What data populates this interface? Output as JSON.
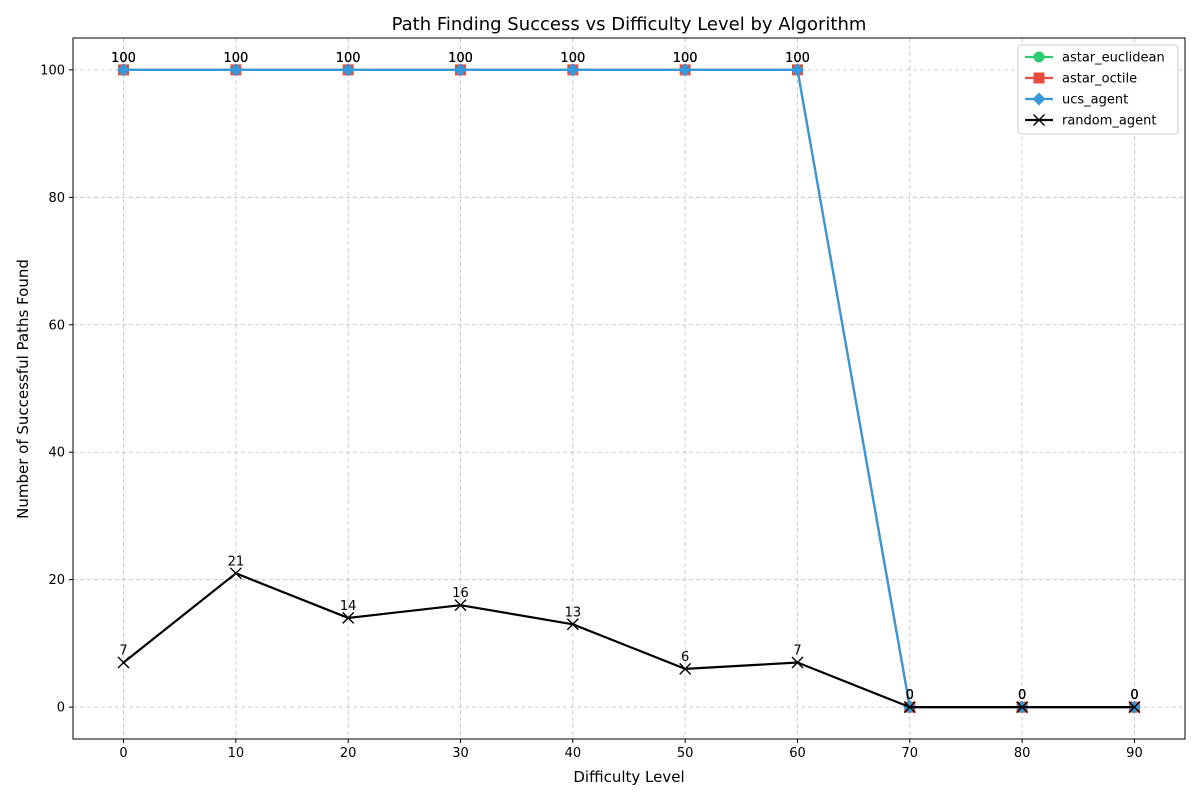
{
  "chart_data": {
    "type": "line",
    "title": "Path Finding Success vs Difficulty Level by Algorithm",
    "xlabel": "Difficulty Level",
    "ylabel": "Number of Successful Paths Found",
    "x": [
      0,
      10,
      20,
      30,
      40,
      50,
      60,
      70,
      80,
      90
    ],
    "xlim": [
      -4.5,
      94.5
    ],
    "ylim": [
      -5,
      105
    ],
    "xticks": [
      "0",
      "10",
      "20",
      "30",
      "40",
      "50",
      "60",
      "70",
      "80",
      "90"
    ],
    "yticks": [
      "0",
      "20",
      "40",
      "60",
      "80",
      "100"
    ],
    "grid": true,
    "legend_position": "top-right",
    "series": [
      {
        "name": "astar_euclidean",
        "color": "#2ecc71",
        "marker": "circle",
        "values": [
          100,
          100,
          100,
          100,
          100,
          100,
          100,
          0,
          0,
          0
        ]
      },
      {
        "name": "astar_octile",
        "color": "#e74c3c",
        "marker": "square",
        "values": [
          100,
          100,
          100,
          100,
          100,
          100,
          100,
          0,
          0,
          0
        ]
      },
      {
        "name": "ucs_agent",
        "color": "#3498db",
        "marker": "diamond",
        "values": [
          100,
          100,
          100,
          100,
          100,
          100,
          100,
          0,
          0,
          0
        ]
      },
      {
        "name": "random_agent",
        "color": "#000000",
        "marker": "x",
        "values": [
          7,
          21,
          14,
          16,
          13,
          6,
          7,
          0,
          0,
          0
        ]
      }
    ]
  }
}
